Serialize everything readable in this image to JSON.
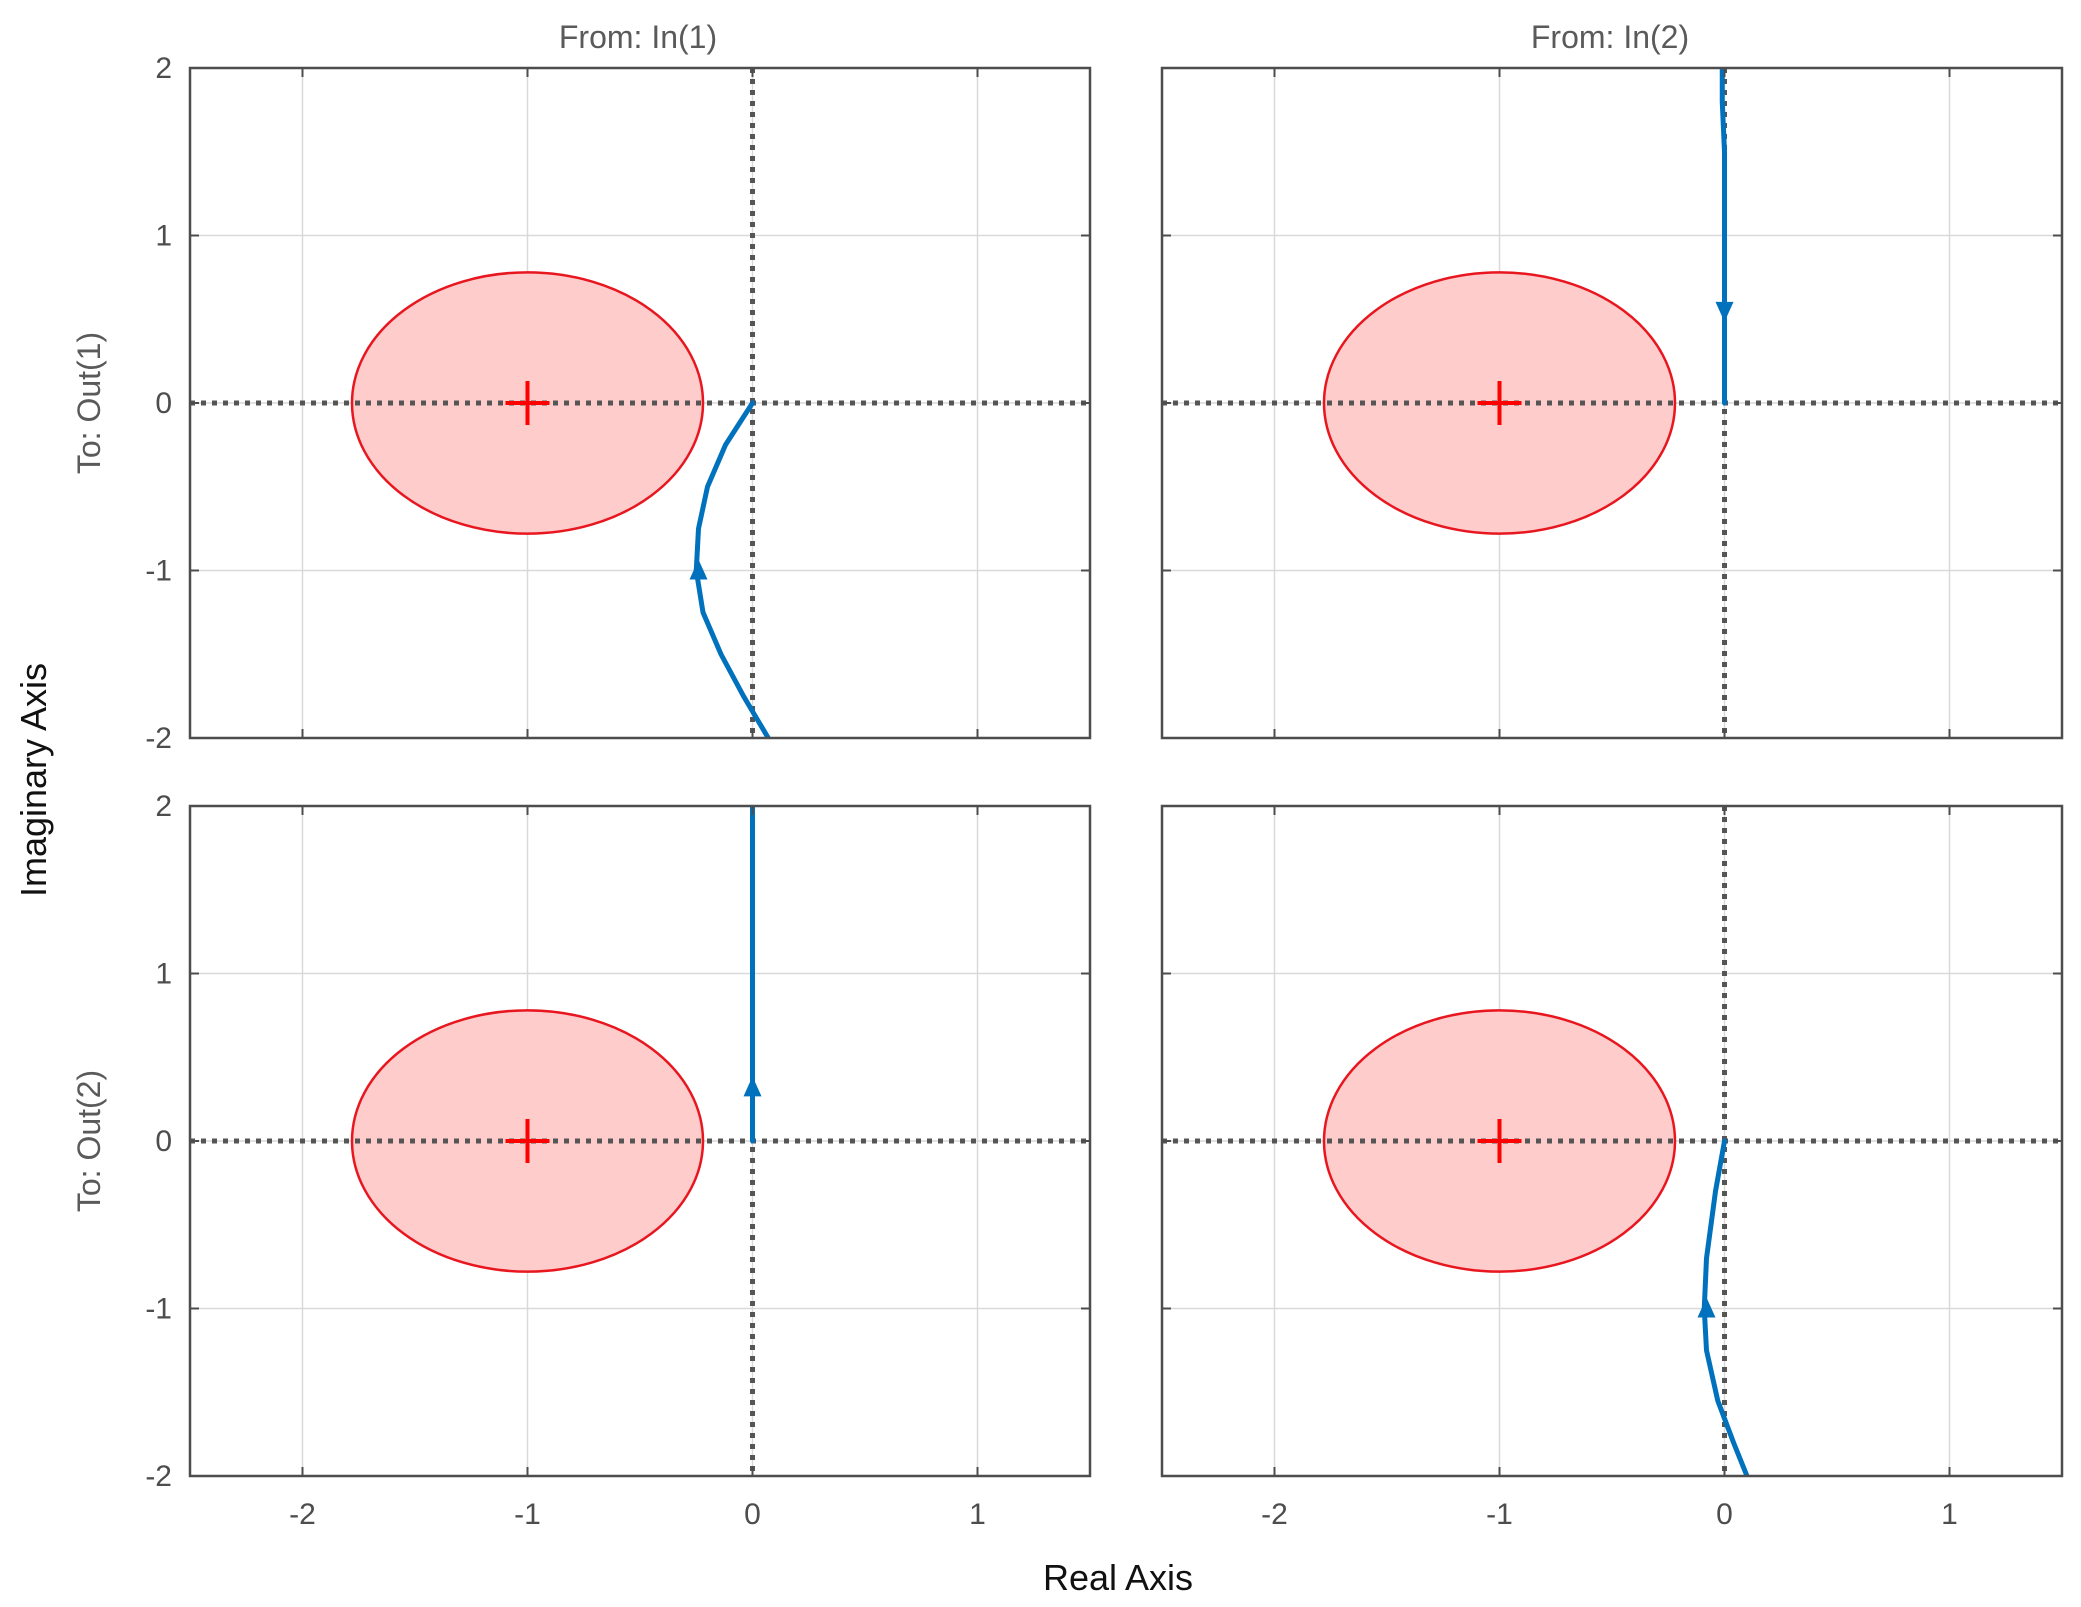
{
  "figure": {
    "xlabel": "Real Axis",
    "ylabel": "Imaginary Axis",
    "column_titles": [
      "From: In(1)",
      "From: In(2)"
    ],
    "row_labels": [
      "To: Out(1)",
      "To: Out(2)"
    ]
  },
  "chart_data": [
    {
      "type": "line",
      "input": "From: In(1)",
      "output": "To: Out(1)",
      "xlim": [
        -2.5,
        1.5
      ],
      "ylim": [
        -2,
        2
      ],
      "xticks": [
        -2,
        -1,
        0,
        1
      ],
      "xtick_labels": [
        "-2",
        "-1",
        "0",
        "1"
      ],
      "yticks": [
        -2,
        -1,
        0,
        1,
        2
      ],
      "ytick_labels": [
        "-2",
        "-1",
        "0",
        "1",
        "2"
      ],
      "grid": true,
      "critical_point": [
        -1,
        0
      ],
      "disk": {
        "center": [
          -1,
          0
        ],
        "rx": 0.78,
        "ry": 0.78
      },
      "series": [
        {
          "x": [
            0,
            -0.12,
            -0.2,
            -0.24,
            -0.25,
            -0.22,
            -0.14,
            -0.04,
            0.07
          ],
          "y": [
            0,
            -0.25,
            -0.5,
            -0.75,
            -1.0,
            -1.25,
            -1.5,
            -1.75,
            -2.0
          ]
        }
      ],
      "arrow": {
        "x": -0.24,
        "y": -1.0,
        "dir": "up"
      }
    },
    {
      "type": "line",
      "input": "From: In(2)",
      "output": "To: Out(1)",
      "xlim": [
        -2.5,
        1.5
      ],
      "ylim": [
        -2,
        2
      ],
      "xticks": [
        -2,
        -1,
        0,
        1
      ],
      "xtick_labels": [
        "-2",
        "-1",
        "0",
        "1"
      ],
      "yticks": [
        -2,
        -1,
        0,
        1,
        2
      ],
      "ytick_labels": [
        "-2",
        "-1",
        "0",
        "1",
        "2"
      ],
      "grid": true,
      "critical_point": [
        -1,
        0
      ],
      "disk": {
        "center": [
          -1,
          0
        ],
        "rx": 0.78,
        "ry": 0.78
      },
      "series": [
        {
          "x": [
            0,
            0,
            0,
            0,
            -0.01,
            -0.01
          ],
          "y": [
            0,
            0.5,
            1.0,
            1.5,
            1.8,
            2.0
          ]
        }
      ],
      "arrow": {
        "x": 0,
        "y": 0.55,
        "dir": "down"
      }
    },
    {
      "type": "line",
      "input": "From: In(1)",
      "output": "To: Out(2)",
      "xlim": [
        -2.5,
        1.5
      ],
      "ylim": [
        -2,
        2
      ],
      "xticks": [
        -2,
        -1,
        0,
        1
      ],
      "xtick_labels": [
        "-2",
        "-1",
        "0",
        "1"
      ],
      "yticks": [
        -2,
        -1,
        0,
        1,
        2
      ],
      "ytick_labels": [
        "-2",
        "-1",
        "0",
        "1",
        "2"
      ],
      "grid": true,
      "critical_point": [
        -1,
        0
      ],
      "disk": {
        "center": [
          -1,
          0
        ],
        "rx": 0.78,
        "ry": 0.78
      },
      "series": [
        {
          "x": [
            0,
            0,
            0,
            0,
            0
          ],
          "y": [
            0,
            0.5,
            1.0,
            1.5,
            2.0
          ]
        }
      ],
      "arrow": {
        "x": 0,
        "y": 0.32,
        "dir": "up"
      }
    },
    {
      "type": "line",
      "input": "From: In(2)",
      "output": "To: Out(2)",
      "xlim": [
        -2.5,
        1.5
      ],
      "ylim": [
        -2,
        2
      ],
      "xticks": [
        -2,
        -1,
        0,
        1
      ],
      "xtick_labels": [
        "-2",
        "-1",
        "0",
        "1"
      ],
      "yticks": [
        -2,
        -1,
        0,
        1,
        2
      ],
      "ytick_labels": [
        "-2",
        "-1",
        "0",
        "1",
        "2"
      ],
      "grid": true,
      "critical_point": [
        -1,
        0
      ],
      "disk": {
        "center": [
          -1,
          0
        ],
        "rx": 0.78,
        "ry": 0.78
      },
      "series": [
        {
          "x": [
            0,
            -0.04,
            -0.08,
            -0.09,
            -0.08,
            -0.03,
            0.04,
            0.1
          ],
          "y": [
            0,
            -0.3,
            -0.7,
            -1.0,
            -1.25,
            -1.55,
            -1.8,
            -2.0
          ]
        }
      ],
      "arrow": {
        "x": -0.08,
        "y": -1.0,
        "dir": "up"
      }
    }
  ],
  "colors": {
    "curve": "#0072bd",
    "disk_fill": "#ffcccc",
    "disk_edge": "#e8161f",
    "critical_marker": "#ff0000",
    "axis_line": "#555555",
    "grid": "#d9d9d9",
    "frame": "#4d4d4d"
  }
}
